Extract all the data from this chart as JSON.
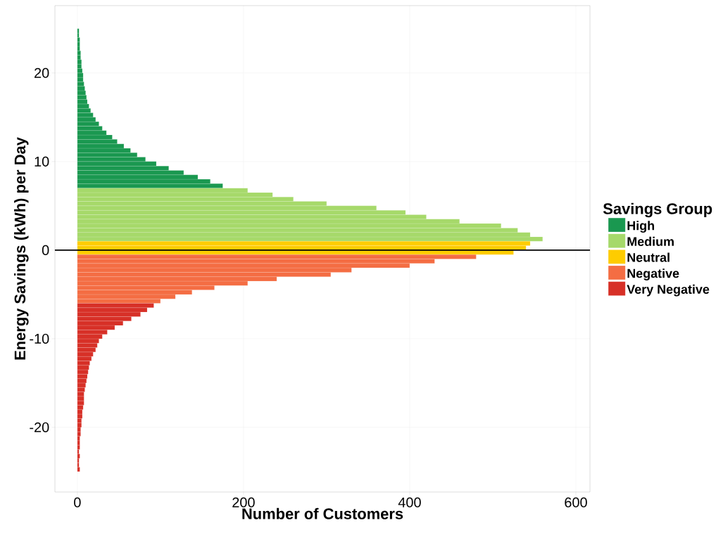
{
  "chart_data": {
    "type": "histogram",
    "orientation": "horizontal",
    "xlabel": "Number of Customers",
    "ylabel": "Energy Savings (kWh) per Day",
    "legend_title": "Savings Group",
    "xlim": [
      -27,
      617
    ],
    "xticks": [
      0,
      200,
      400,
      600
    ],
    "ylim": [
      -27.3,
      27.6
    ],
    "yticks": [
      -20,
      -10,
      0,
      10,
      20
    ],
    "grid": true,
    "legend": "right",
    "ref_lines": [
      {
        "axis": "y",
        "value": 0,
        "color": "#000000"
      }
    ],
    "bins": [
      -25,
      -24.5,
      -24,
      -23.5,
      -23,
      -22.5,
      -22,
      -21.5,
      -21,
      -20.5,
      -20,
      -19.5,
      -19,
      -18.5,
      -18,
      -17.5,
      -17,
      -16.5,
      -16,
      -15.5,
      -15,
      -14.5,
      -14,
      -13.5,
      -13,
      -12.5,
      -12,
      -11.5,
      -11,
      -10.5,
      -10,
      -9.5,
      -9,
      -8.5,
      -8,
      -7.5,
      -7,
      -6.5,
      -6,
      -5.5,
      -5,
      -4.5,
      -4,
      -3.5,
      -3,
      -2.5,
      -2,
      -1.5,
      -1,
      -0.5,
      0,
      0.5,
      1,
      1.5,
      2,
      2.5,
      3,
      3.5,
      4,
      4.5,
      5,
      5.5,
      6,
      6.5,
      7,
      7.5,
      8,
      8.5,
      9,
      9.5,
      10,
      10.5,
      11,
      11.5,
      12,
      12.5,
      13,
      13.5,
      14,
      14.5,
      15,
      15.5,
      16,
      16.5,
      17,
      17.5,
      18,
      18.5,
      19,
      19.5,
      20,
      20.5,
      21,
      21.5,
      22,
      22.5,
      23,
      23.5,
      24,
      24.5,
      25
    ],
    "series": [
      {
        "name": "High",
        "color": "#1a9850",
        "values": [
          null,
          null,
          null,
          null,
          null,
          null,
          null,
          null,
          null,
          null,
          null,
          null,
          null,
          null,
          null,
          null,
          null,
          null,
          null,
          null,
          null,
          null,
          null,
          null,
          null,
          null,
          null,
          null,
          null,
          null,
          null,
          null,
          null,
          null,
          null,
          null,
          null,
          null,
          null,
          null,
          null,
          null,
          null,
          null,
          null,
          null,
          null,
          null,
          null,
          null,
          null,
          null,
          null,
          null,
          null,
          null,
          null,
          null,
          null,
          null,
          null,
          null,
          null,
          null,
          175,
          160,
          145,
          128,
          110,
          95,
          82,
          72,
          64,
          56,
          48,
          42,
          35,
          30,
          26,
          22,
          19,
          16,
          14,
          12,
          11,
          10,
          9,
          8,
          7,
          7,
          6,
          5,
          5,
          4,
          4,
          3,
          3,
          3,
          2,
          2
        ]
      },
      {
        "name": "Medium",
        "color": "#a6d96a",
        "values": [
          null,
          null,
          null,
          null,
          null,
          null,
          null,
          null,
          null,
          null,
          null,
          null,
          null,
          null,
          null,
          null,
          null,
          null,
          null,
          null,
          null,
          null,
          null,
          null,
          null,
          null,
          null,
          null,
          null,
          null,
          null,
          null,
          null,
          null,
          null,
          null,
          null,
          null,
          null,
          null,
          null,
          null,
          null,
          null,
          null,
          null,
          null,
          null,
          null,
          null,
          null,
          null,
          560,
          545,
          530,
          510,
          460,
          420,
          395,
          360,
          300,
          260,
          235,
          205,
          null,
          null,
          null,
          null,
          null,
          null,
          null,
          null,
          null,
          null,
          null,
          null,
          null,
          null,
          null,
          null,
          null,
          null,
          null,
          null,
          null,
          null,
          null,
          null,
          null,
          null,
          null,
          null,
          null,
          null,
          null,
          null,
          null,
          null,
          null,
          null
        ]
      },
      {
        "name": "Neutral",
        "color": "#fecc00",
        "values": [
          null,
          null,
          null,
          null,
          null,
          null,
          null,
          null,
          null,
          null,
          null,
          null,
          null,
          null,
          null,
          null,
          null,
          null,
          null,
          null,
          null,
          null,
          null,
          null,
          null,
          null,
          null,
          null,
          null,
          null,
          null,
          null,
          null,
          null,
          null,
          null,
          null,
          null,
          null,
          null,
          null,
          null,
          null,
          null,
          null,
          null,
          null,
          null,
          null,
          525,
          540,
          545,
          null,
          null,
          null,
          null,
          null,
          null,
          null,
          null,
          null,
          null,
          null,
          null,
          null,
          null,
          null,
          null,
          null,
          null,
          null,
          null,
          null,
          null,
          null,
          null,
          null,
          null,
          null,
          null,
          null,
          null,
          null,
          null,
          null,
          null,
          null,
          null,
          null,
          null,
          null,
          null,
          null,
          null,
          null,
          null,
          null,
          null,
          null,
          null
        ]
      },
      {
        "name": "Negative",
        "color": "#f46d43",
        "values": [
          null,
          null,
          null,
          null,
          null,
          null,
          null,
          null,
          null,
          null,
          null,
          null,
          null,
          null,
          null,
          null,
          null,
          null,
          null,
          null,
          null,
          null,
          null,
          null,
          null,
          null,
          null,
          null,
          null,
          null,
          null,
          null,
          null,
          null,
          null,
          null,
          null,
          null,
          100,
          118,
          138,
          165,
          205,
          240,
          305,
          330,
          400,
          430,
          480,
          null,
          null,
          null,
          null,
          null,
          null,
          null,
          null,
          null,
          null,
          null,
          null,
          null,
          null,
          null,
          null,
          null,
          null,
          null,
          null,
          null,
          null,
          null,
          null,
          null,
          null,
          null,
          null,
          null,
          null,
          null,
          null,
          null,
          null,
          null,
          null,
          null,
          null,
          null,
          null,
          null,
          null,
          null,
          null,
          null,
          null,
          null,
          null,
          null,
          null,
          null
        ]
      },
      {
        "name": "Very Negative",
        "color": "#d73027",
        "values": [
          3,
          2,
          2,
          3,
          2,
          3,
          3,
          3,
          4,
          4,
          5,
          5,
          6,
          6,
          7,
          8,
          8,
          8,
          9,
          10,
          11,
          12,
          13,
          14,
          15,
          17,
          19,
          22,
          24,
          26,
          30,
          36,
          45,
          55,
          65,
          76,
          84,
          92,
          null,
          null,
          null,
          null,
          null,
          null,
          null,
          null,
          null,
          null,
          null,
          null,
          null,
          null,
          null,
          null,
          null,
          null,
          null,
          null,
          null,
          null,
          null,
          null,
          null,
          null,
          null,
          null,
          null,
          null,
          null,
          null,
          null,
          null,
          null,
          null,
          null,
          null,
          null,
          null,
          null,
          null,
          null,
          null,
          null,
          null,
          null,
          null,
          null,
          null,
          null,
          null,
          null,
          null,
          null,
          null,
          null,
          null,
          null,
          null,
          null,
          null
        ]
      }
    ]
  }
}
